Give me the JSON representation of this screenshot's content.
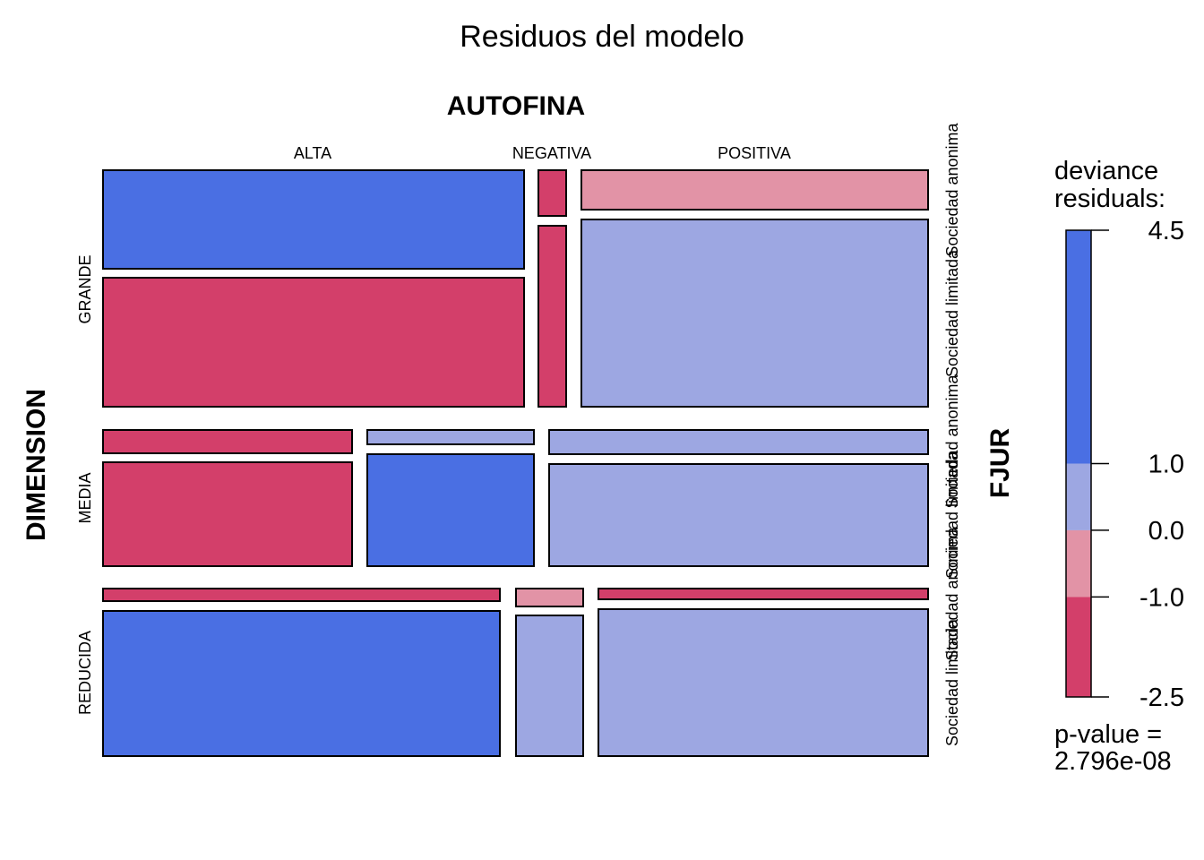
{
  "chart_data": {
    "type": "mosaic",
    "title": "Residuos del modelo",
    "col_variable": "AUTOFINA",
    "row_variable": "DIMENSION",
    "sub_variable": "FJUR",
    "columns": [
      "ALTA",
      "NEGATIVA",
      "POSITIVA"
    ],
    "rows": [
      "GRANDE",
      "MEDIA",
      "REDUCIDA"
    ],
    "sub_levels": [
      "Sociedad anonima",
      "Sociedad limitada"
    ],
    "cells": [
      {
        "row": "GRANDE",
        "col": "ALTA",
        "fjur": "Sociedad anonima",
        "residual_band": "> 1.0"
      },
      {
        "row": "GRANDE",
        "col": "ALTA",
        "fjur": "Sociedad limitada",
        "residual_band": "< -1.0"
      },
      {
        "row": "GRANDE",
        "col": "NEGATIVA",
        "fjur": "Sociedad anonima",
        "residual_band": "< -1.0"
      },
      {
        "row": "GRANDE",
        "col": "NEGATIVA",
        "fjur": "Sociedad limitada",
        "residual_band": "< -1.0"
      },
      {
        "row": "GRANDE",
        "col": "POSITIVA",
        "fjur": "Sociedad anonima",
        "residual_band": "-1.0 to 0.0"
      },
      {
        "row": "GRANDE",
        "col": "POSITIVA",
        "fjur": "Sociedad limitada",
        "residual_band": "0.0 to 1.0"
      },
      {
        "row": "MEDIA",
        "col": "ALTA",
        "fjur": "Sociedad anonima",
        "residual_band": "< -1.0"
      },
      {
        "row": "MEDIA",
        "col": "ALTA",
        "fjur": "Sociedad limitada",
        "residual_band": "< -1.0"
      },
      {
        "row": "MEDIA",
        "col": "NEGATIVA",
        "fjur": "Sociedad anonima",
        "residual_band": "0.0 to 1.0"
      },
      {
        "row": "MEDIA",
        "col": "NEGATIVA",
        "fjur": "Sociedad limitada",
        "residual_band": "> 1.0"
      },
      {
        "row": "MEDIA",
        "col": "POSITIVA",
        "fjur": "Sociedad anonima",
        "residual_band": "0.0 to 1.0"
      },
      {
        "row": "MEDIA",
        "col": "POSITIVA",
        "fjur": "Sociedad limitada",
        "residual_band": "0.0 to 1.0"
      },
      {
        "row": "REDUCIDA",
        "col": "ALTA",
        "fjur": "Sociedad anonima",
        "residual_band": "< -1.0"
      },
      {
        "row": "REDUCIDA",
        "col": "ALTA",
        "fjur": "Sociedad limitada",
        "residual_band": "> 1.0"
      },
      {
        "row": "REDUCIDA",
        "col": "NEGATIVA",
        "fjur": "Sociedad anonima",
        "residual_band": "-1.0 to 0.0"
      },
      {
        "row": "REDUCIDA",
        "col": "NEGATIVA",
        "fjur": "Sociedad limitada",
        "residual_band": "0.0 to 1.0"
      },
      {
        "row": "REDUCIDA",
        "col": "POSITIVA",
        "fjur": "Sociedad anonima",
        "residual_band": "< -1.0"
      },
      {
        "row": "REDUCIDA",
        "col": "POSITIVA",
        "fjur": "Sociedad limitada",
        "residual_band": "0.0 to 1.0"
      }
    ],
    "legend": {
      "title_line1": "deviance",
      "title_line2": "residuals:",
      "range": [
        -2.5,
        4.5
      ],
      "ticks": [
        "4.5",
        "1.0",
        "0.0",
        "-1.0",
        "-2.5"
      ],
      "tick_values": [
        4.5,
        1.0,
        0.0,
        -1.0,
        -2.5
      ],
      "bands": [
        {
          "from": 1.0,
          "to": 4.5,
          "color": "#4a6fe3"
        },
        {
          "from": 0.0,
          "to": 1.0,
          "color": "#9da7e2"
        },
        {
          "from": -1.0,
          "to": 0.0,
          "color": "#e293a6"
        },
        {
          "from": -2.5,
          "to": -1.0,
          "color": "#d33f6a"
        }
      ],
      "pvalue_line1": "p-value =",
      "pvalue_line2": "2.796e-08"
    }
  }
}
